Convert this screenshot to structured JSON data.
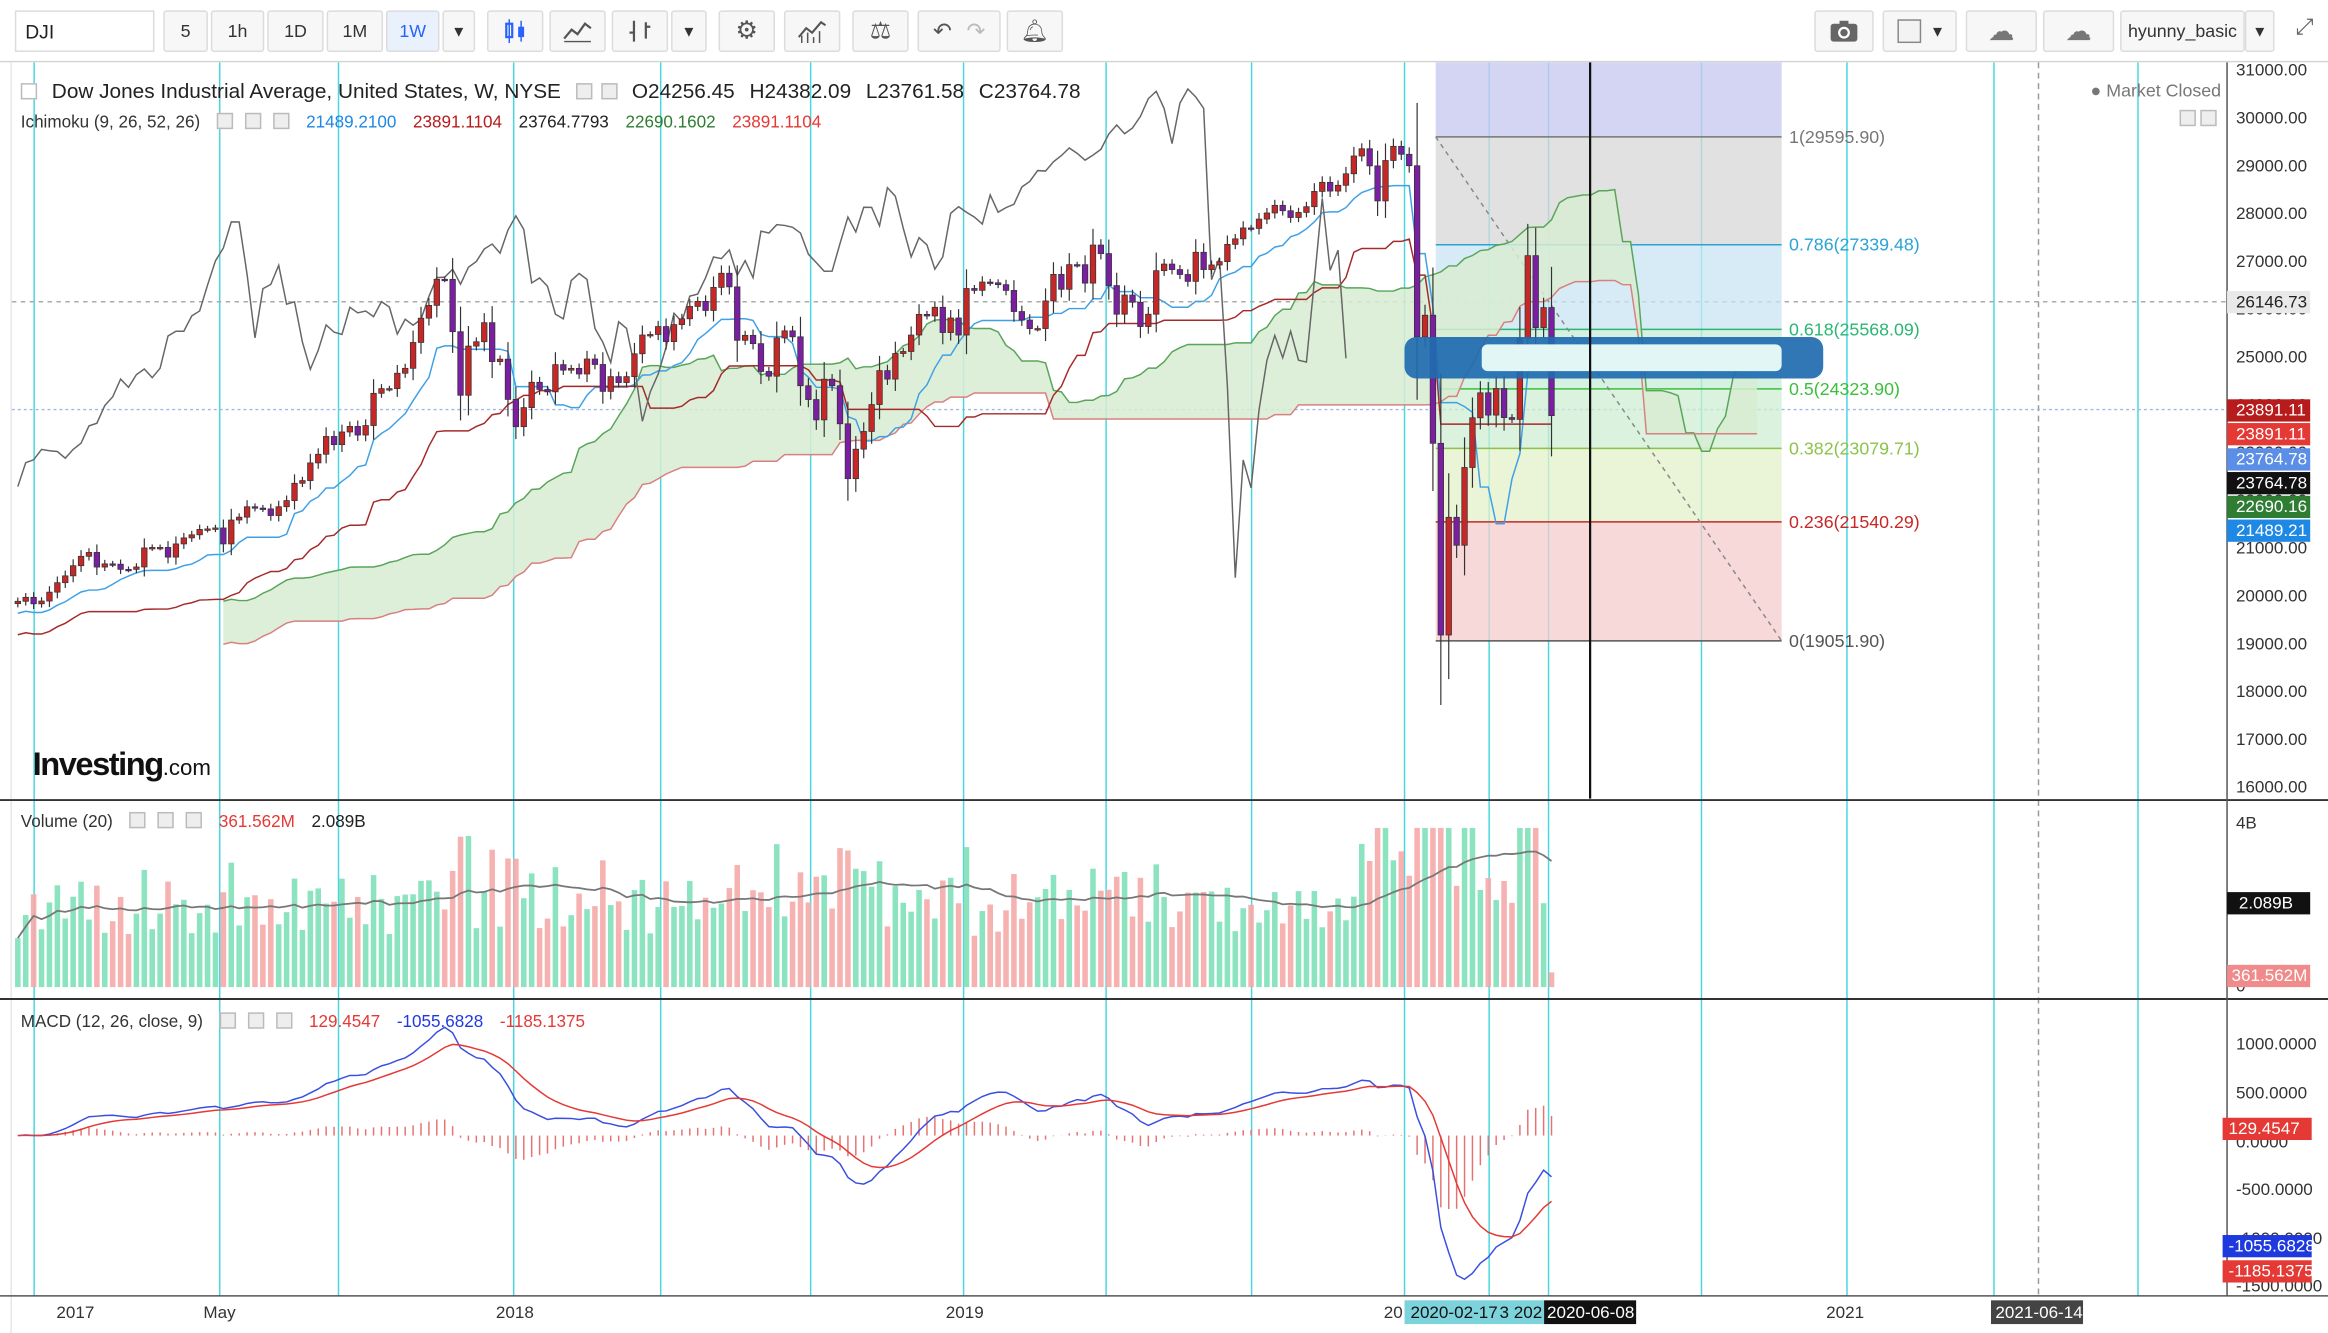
{
  "toolbar": {
    "symbol": "DJI",
    "intervals": [
      "5",
      "1h",
      "1D",
      "1M",
      "1W"
    ],
    "active_interval": "1W",
    "user": "hyunny_basic",
    "icons": [
      "candles-icon",
      "line-chart-icon",
      "bar-chart-icon",
      "settings-icon",
      "indicators-icon",
      "compare-icon",
      "undo-icon",
      "redo-icon",
      "alert-icon",
      "camera-icon",
      "color-icon",
      "cloud-download-icon",
      "cloud-upload-icon"
    ]
  },
  "header": {
    "title": "Dow Jones Industrial Average, United States, W, NYSE",
    "ohlc": {
      "o": "O24256.45",
      "h": "H24382.09",
      "l": "L23761.58",
      "c": "C23764.78"
    },
    "market_status": "Market Closed",
    "ichimoku": {
      "label": "Ichimoku (9, 26, 52, 26)",
      "values": [
        "21489.2100",
        "23891.1104",
        "23764.7793",
        "22690.1602",
        "23891.1104"
      ],
      "colors": [
        "#1e88e5",
        "#b71c1c",
        "#222222",
        "#2e7d32",
        "#e53935"
      ]
    },
    "volume": {
      "label": "Volume (20)",
      "values": [
        "361.562M",
        "2.089B"
      ],
      "colors": [
        "#e53935",
        "#222222"
      ]
    },
    "macd": {
      "label": "MACD (12, 26, close, 9)",
      "values": [
        "129.4547",
        "-1055.6828",
        "-1185.1375"
      ],
      "colors": [
        "#e53935",
        "#1e3adf",
        "#e53935"
      ]
    }
  },
  "chart_data": {
    "type": "candlestick",
    "title": "Dow Jones Industrial Average, United States, W, NYSE",
    "ylim": [
      16000,
      31000
    ],
    "y_ticks": [
      31000,
      30000,
      29000,
      28000,
      27000,
      26000,
      25000,
      24000,
      23000,
      22000,
      21000,
      20000,
      19000,
      18000,
      17000,
      16000
    ],
    "x_ticks": [
      "2017",
      "May",
      "2018",
      "2019",
      "20",
      "2020-02-17",
      "3",
      "202",
      "2020-06-08",
      "2021",
      "2021-06-14"
    ],
    "fib_levels": [
      {
        "ratio": "1",
        "value": 29595.9,
        "label": "1(29595.90)",
        "color": "#777777"
      },
      {
        "ratio": "0.786",
        "value": 27339.48,
        "label": "0.786(27339.48)",
        "color": "#2aa3d6"
      },
      {
        "ratio": "0.618",
        "value": 25568.09,
        "label": "0.618(25568.09)",
        "color": "#2bb673"
      },
      {
        "ratio": "0.5",
        "value": 24323.9,
        "label": "0.5(24323.90)",
        "color": "#3bbf3b"
      },
      {
        "ratio": "0.382",
        "value": 23079.71,
        "label": "0.382(23079.71)",
        "color": "#8bc34a"
      },
      {
        "ratio": "0.236",
        "value": 21540.29,
        "label": "0.236(21540.29)",
        "color": "#c62828"
      },
      {
        "ratio": "0",
        "value": 19051.9,
        "label": "0(19051.90)",
        "color": "#555555"
      }
    ],
    "price_labels": [
      {
        "text": "26146.73",
        "value": 26146.73,
        "bg": "#e9e9e9",
        "fg": "#222222"
      },
      {
        "text": "23891.11",
        "value": 23891.11,
        "bg": "#b71c1c",
        "fg": "#ffffff"
      },
      {
        "text": "23891.11",
        "value": 23891.11,
        "bg": "#e53935",
        "fg": "#ffffff"
      },
      {
        "text": "23764.78",
        "value": 23764.78,
        "bg": "#5b8ee6",
        "fg": "#ffffff"
      },
      {
        "text": "23764.78",
        "value": 23764.78,
        "bg": "#111111",
        "fg": "#ffffff"
      },
      {
        "text": "22690.16",
        "value": 22690.16,
        "bg": "#2e7d32",
        "fg": "#ffffff"
      },
      {
        "text": "21489.21",
        "value": 21489.21,
        "bg": "#1e88e5",
        "fg": "#ffffff"
      }
    ],
    "candles_weekly_close": [
      19880,
      19963,
      19827,
      19885,
      20071,
      20269,
      20412,
      20624,
      20821,
      20902,
      20596,
      20663,
      20656,
      20548,
      20547,
      20598,
      20996,
      21006,
      21007,
      20804,
      21080,
      21206,
      21271,
      21384,
      21394,
      21414,
      21080,
      21580,
      21640,
      21858,
      21830,
      21813,
      21674,
      21858,
      21987,
      22349,
      22405,
      22775,
      22956,
      23328,
      23157,
      23422,
      23539,
      23358,
      23557,
      24231,
      24329,
      24329,
      24651,
      24754,
      25295,
      25803,
      26071,
      26617,
      26616,
      25520,
      24190,
      25219,
      25310,
      25709,
      24895,
      24946,
      24103,
      23533,
      23932,
      24462,
      24311,
      24262,
      24831,
      24715,
      24753,
      24635,
      24949,
      24834,
      24271,
      24580,
      24456,
      24580,
      25058,
      25451,
      25462,
      25628,
      25313,
      25669,
      25790,
      26049,
      26154,
      25964,
      26447,
      26743,
      26458,
      25340,
      25444,
      25270,
      24688,
      24589,
      25390,
      25538,
      25413,
      24389,
      24100,
      23675,
      24527,
      24389,
      23593,
      22445,
      23062,
      23433,
      23996,
      24706,
      24528,
      25064,
      25106,
      25450,
      25883,
      25849,
      26031,
      25502,
      25807,
      25450,
      26424,
      26385,
      26559,
      26543,
      26504,
      26384,
      25942,
      25764,
      25585,
      25586,
      26164,
      26719,
      26407,
      26923,
      26922,
      26536,
      27333,
      27154,
      26485,
      25886,
      26287,
      26136,
      25628,
      25886,
      26797,
      26935,
      26820,
      26717,
      26573,
      27182,
      26820,
      26916,
      26986,
      27347,
      27463,
      27691,
      27681,
      27876,
      28004,
      28164,
      28051,
      27909,
      28015,
      28135,
      28455,
      28645,
      28462,
      28583,
      28824,
      29196,
      29348,
      28989,
      28256,
      29102,
      29398,
      29232,
      28992,
      25409,
      25865,
      23185,
      19174,
      21637,
      21052,
      22679,
      23719,
      24242,
      23775,
      24331,
      23723,
      23685,
      25383,
      27111,
      25605,
      26025,
      23764
    ],
    "volume_ma_label": "2.089B",
    "volume_last_label": "361.562M",
    "volume_axis_ticks": [
      "4B",
      "0"
    ],
    "macd_axis_ticks": [
      "1000.0000",
      "500.0000",
      "0.0000",
      "-500.0000",
      "-1000.0000",
      "-1500.0000"
    ],
    "macd_labels": [
      {
        "text": "129.4547",
        "bg": "#e53935"
      },
      {
        "text": "-1055.6828",
        "bg": "#1e3adf"
      },
      {
        "text": "-1185.1375",
        "bg": "#e53935"
      }
    ],
    "time_labels_highlight": [
      "2020-02-17",
      "2020-06-08",
      "2021-06-14"
    ],
    "watermark": "Investing.com"
  }
}
